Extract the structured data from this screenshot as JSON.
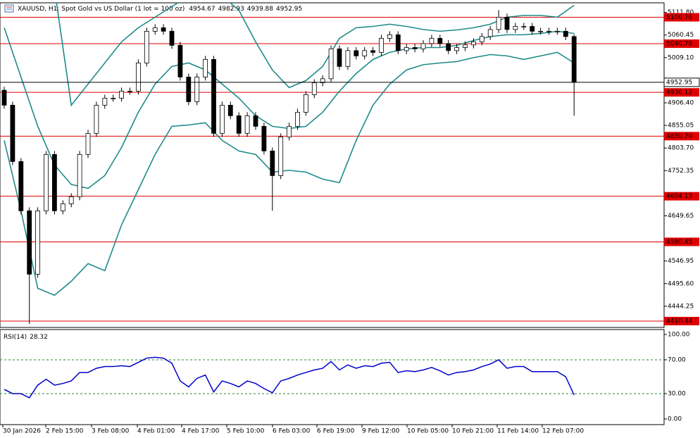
{
  "chart_data": {
    "type": "candlestick",
    "title": "XAUUSD, H1:  Spot Gold vs US Dollar (1 lot = 100 oz)",
    "ohlc_header": [
      4954.67,
      4982.93,
      4939.88,
      4952.95
    ],
    "x_labels": [
      "30 Jan 2026",
      "2 Feb 15:00",
      "3 Feb 08:00",
      "4 Feb 01:00",
      "4 Feb 17:00",
      "5 Feb 10:00",
      "6 Feb 03:00",
      "6 Feb 19:00",
      "9 Feb 12:00",
      "10 Feb 05:00",
      "10 Feb 21:00",
      "11 Feb 14:00",
      "12 Feb 07:00"
    ],
    "candles": [
      [
        4935,
        4943,
        4893,
        4901
      ],
      [
        4901,
        4909,
        4765,
        4773
      ],
      [
        4773,
        4781,
        4653,
        4661
      ],
      [
        4661,
        4669,
        4404,
        4517
      ],
      [
        4517,
        4669,
        4509,
        4661
      ],
      [
        4661,
        4797,
        4653,
        4789
      ],
      [
        4789,
        4797,
        4653,
        4661
      ],
      [
        4661,
        4685,
        4653,
        4677
      ],
      [
        4677,
        4701,
        4669,
        4693
      ],
      [
        4693,
        4797,
        4685,
        4789
      ],
      [
        4789,
        4845,
        4781,
        4837
      ],
      [
        4837,
        4909,
        4829,
        4901
      ],
      [
        4901,
        4925,
        4893,
        4917
      ],
      [
        4917,
        4925,
        4909,
        4917
      ],
      [
        4917,
        4941,
        4909,
        4933
      ],
      [
        4933,
        4941,
        4925,
        4933
      ],
      [
        4933,
        5005,
        4925,
        4997
      ],
      [
        4997,
        5077,
        4989,
        5069
      ],
      [
        5069,
        5085,
        5061,
        5077
      ],
      [
        5077,
        5085,
        5061,
        5069
      ],
      [
        5069,
        5077,
        5029,
        5037
      ],
      [
        5037,
        5045,
        4957,
        4965
      ],
      [
        4965,
        4973,
        4901,
        4909
      ],
      [
        4909,
        4973,
        4901,
        4965
      ],
      [
        4965,
        5013,
        4957,
        5005
      ],
      [
        5005,
        5013,
        4829,
        4837
      ],
      [
        4837,
        4909,
        4829,
        4901
      ],
      [
        4901,
        4909,
        4869,
        4877
      ],
      [
        4877,
        4885,
        4829,
        4837
      ],
      [
        4837,
        4885,
        4829,
        4877
      ],
      [
        4877,
        4885,
        4845,
        4853
      ],
      [
        4853,
        4861,
        4789,
        4797
      ],
      [
        4797,
        4805,
        4661,
        4741
      ],
      [
        4741,
        4837,
        4733,
        4829
      ],
      [
        4829,
        4861,
        4821,
        4853
      ],
      [
        4853,
        4893,
        4845,
        4885
      ],
      [
        4885,
        4933,
        4877,
        4925
      ],
      [
        4925,
        4960,
        4917,
        4952
      ],
      [
        4952,
        4969,
        4944,
        4961
      ],
      [
        4961,
        5037,
        4953,
        5029
      ],
      [
        5029,
        5037,
        4981,
        4989
      ],
      [
        4989,
        5033,
        4981,
        5025
      ],
      [
        5025,
        5033,
        5005,
        5013
      ],
      [
        5013,
        5033,
        5005,
        5025
      ],
      [
        5025,
        5033,
        5013,
        5021
      ],
      [
        5021,
        5061,
        5013,
        5053
      ],
      [
        5053,
        5069,
        5045,
        5061
      ],
      [
        5061,
        5069,
        5017,
        5025
      ],
      [
        5025,
        5040,
        5017,
        5032
      ],
      [
        5032,
        5040,
        5021,
        5029
      ],
      [
        5029,
        5049,
        5021,
        5041
      ],
      [
        5041,
        5061,
        5033,
        5053
      ],
      [
        5053,
        5061,
        5033,
        5041
      ],
      [
        5041,
        5049,
        5017,
        5025
      ],
      [
        5025,
        5040,
        5017,
        5032
      ],
      [
        5032,
        5046,
        5024,
        5038
      ],
      [
        5038,
        5053,
        5030,
        5045
      ],
      [
        5045,
        5065,
        5037,
        5057
      ],
      [
        5057,
        5081,
        5049,
        5073
      ],
      [
        5073,
        5117,
        5065,
        5101
      ],
      [
        5101,
        5109,
        5065,
        5073
      ],
      [
        5073,
        5088,
        5065,
        5080
      ],
      [
        5080,
        5088,
        5072,
        5080
      ],
      [
        5080,
        5088,
        5061,
        5069
      ],
      [
        5069,
        5077,
        5061,
        5069
      ],
      [
        5069,
        5077,
        5061,
        5069
      ],
      [
        5069,
        5077,
        5061,
        5069
      ],
      [
        5069,
        5077,
        5049,
        5057
      ],
      [
        5057,
        5062,
        4877,
        4952.95
      ]
    ],
    "bands": [
      {
        "color": "#1f8a8a",
        "values": [
          5461,
          5349,
          5253,
          5165,
          4901,
          4949,
          4997,
          5045,
          5077,
          5101,
          5125,
          5149,
          5157,
          5149,
          5117,
          5045,
          4981,
          4941,
          4957,
          4989,
          5053,
          5077,
          5080,
          5085,
          5080,
          5073,
          5069,
          5072,
          5077,
          5085,
          5101,
          5105,
          5105,
          5101,
          5128
        ]
      },
      {
        "color": "#1f8a8a",
        "values": [
          5077,
          4965,
          4853,
          4765,
          4721,
          4712,
          4741,
          4805,
          4885,
          4949,
          4989,
          4997,
          4981,
          4949,
          4917,
          4877,
          4853,
          4848,
          4853,
          4885,
          4933,
          4973,
          5005,
          5021,
          5029,
          5032,
          5032,
          5037,
          5048,
          5057,
          5061,
          5061,
          5064,
          5069,
          5064
        ]
      },
      {
        "color": "#1f8a8a",
        "values": [
          4821,
          4661,
          4485,
          4469,
          4501,
          4541,
          4525,
          4629,
          4709,
          4789,
          4853,
          4856,
          4861,
          4821,
          4797,
          4789,
          4749,
          4753,
          4749,
          4733,
          4725,
          4821,
          4901,
          4949,
          4981,
          4993,
          4997,
          5000,
          5009,
          5016,
          5013,
          5005,
          5013,
          5021,
          4997
        ]
      }
    ],
    "ylim": [
      4396,
      5140
    ],
    "yticks": [
      {
        "value": 5111.8,
        "label": "5111.80"
      },
      {
        "value": 5060.45,
        "label": "5060.45"
      },
      {
        "value": 5009.1,
        "label": "5009.10"
      },
      {
        "value": 4906.4,
        "label": "4906.40"
      },
      {
        "value": 4855.05,
        "label": "4855.05"
      },
      {
        "value": 4803.7,
        "label": "4803.70"
      },
      {
        "value": 4752.35,
        "label": "4752.35"
      },
      {
        "value": 4649.65,
        "label": "4649.65"
      },
      {
        "value": 4546.95,
        "label": "4546.95"
      },
      {
        "value": 4495.6,
        "label": "4495.60"
      },
      {
        "value": 4444.25,
        "label": "4444.25"
      }
    ],
    "levels": {
      "color": "#e00000",
      "values": [
        5100.76,
        5040.78,
        4930.12,
        {
          "value": 4830.7,
          "label": "4830.70"
        },
        4694.13,
        4590.45,
        4410.44
      ]
    },
    "current_price": 4952.95,
    "rsi": {
      "label": "RSI(14)",
      "color": "#0000cc",
      "values": [
        35,
        30,
        30,
        25,
        40,
        47,
        40,
        42,
        45,
        55,
        55,
        60,
        62,
        62,
        63,
        62,
        67,
        72,
        73,
        72,
        66,
        45,
        38,
        48,
        52,
        32,
        45,
        42,
        38,
        45,
        42,
        36,
        31,
        45,
        48,
        52,
        55,
        58,
        60,
        68,
        58,
        64,
        60,
        63,
        62,
        66,
        67,
        55,
        57,
        56,
        58,
        61,
        57,
        52,
        55,
        56,
        58,
        62,
        65,
        70,
        60,
        62,
        62,
        56,
        56,
        56,
        56,
        50,
        28.32
      ],
      "ylim": [
        -6.7,
        105.8
      ],
      "yticks": [
        {
          "value": 100,
          "label": "100.00"
        },
        {
          "value": 70,
          "label": "70.00"
        },
        {
          "value": 30,
          "label": "30.00"
        },
        {
          "value": 0,
          "label": "0.00"
        }
      ],
      "levels": [
        70,
        30
      ]
    }
  }
}
